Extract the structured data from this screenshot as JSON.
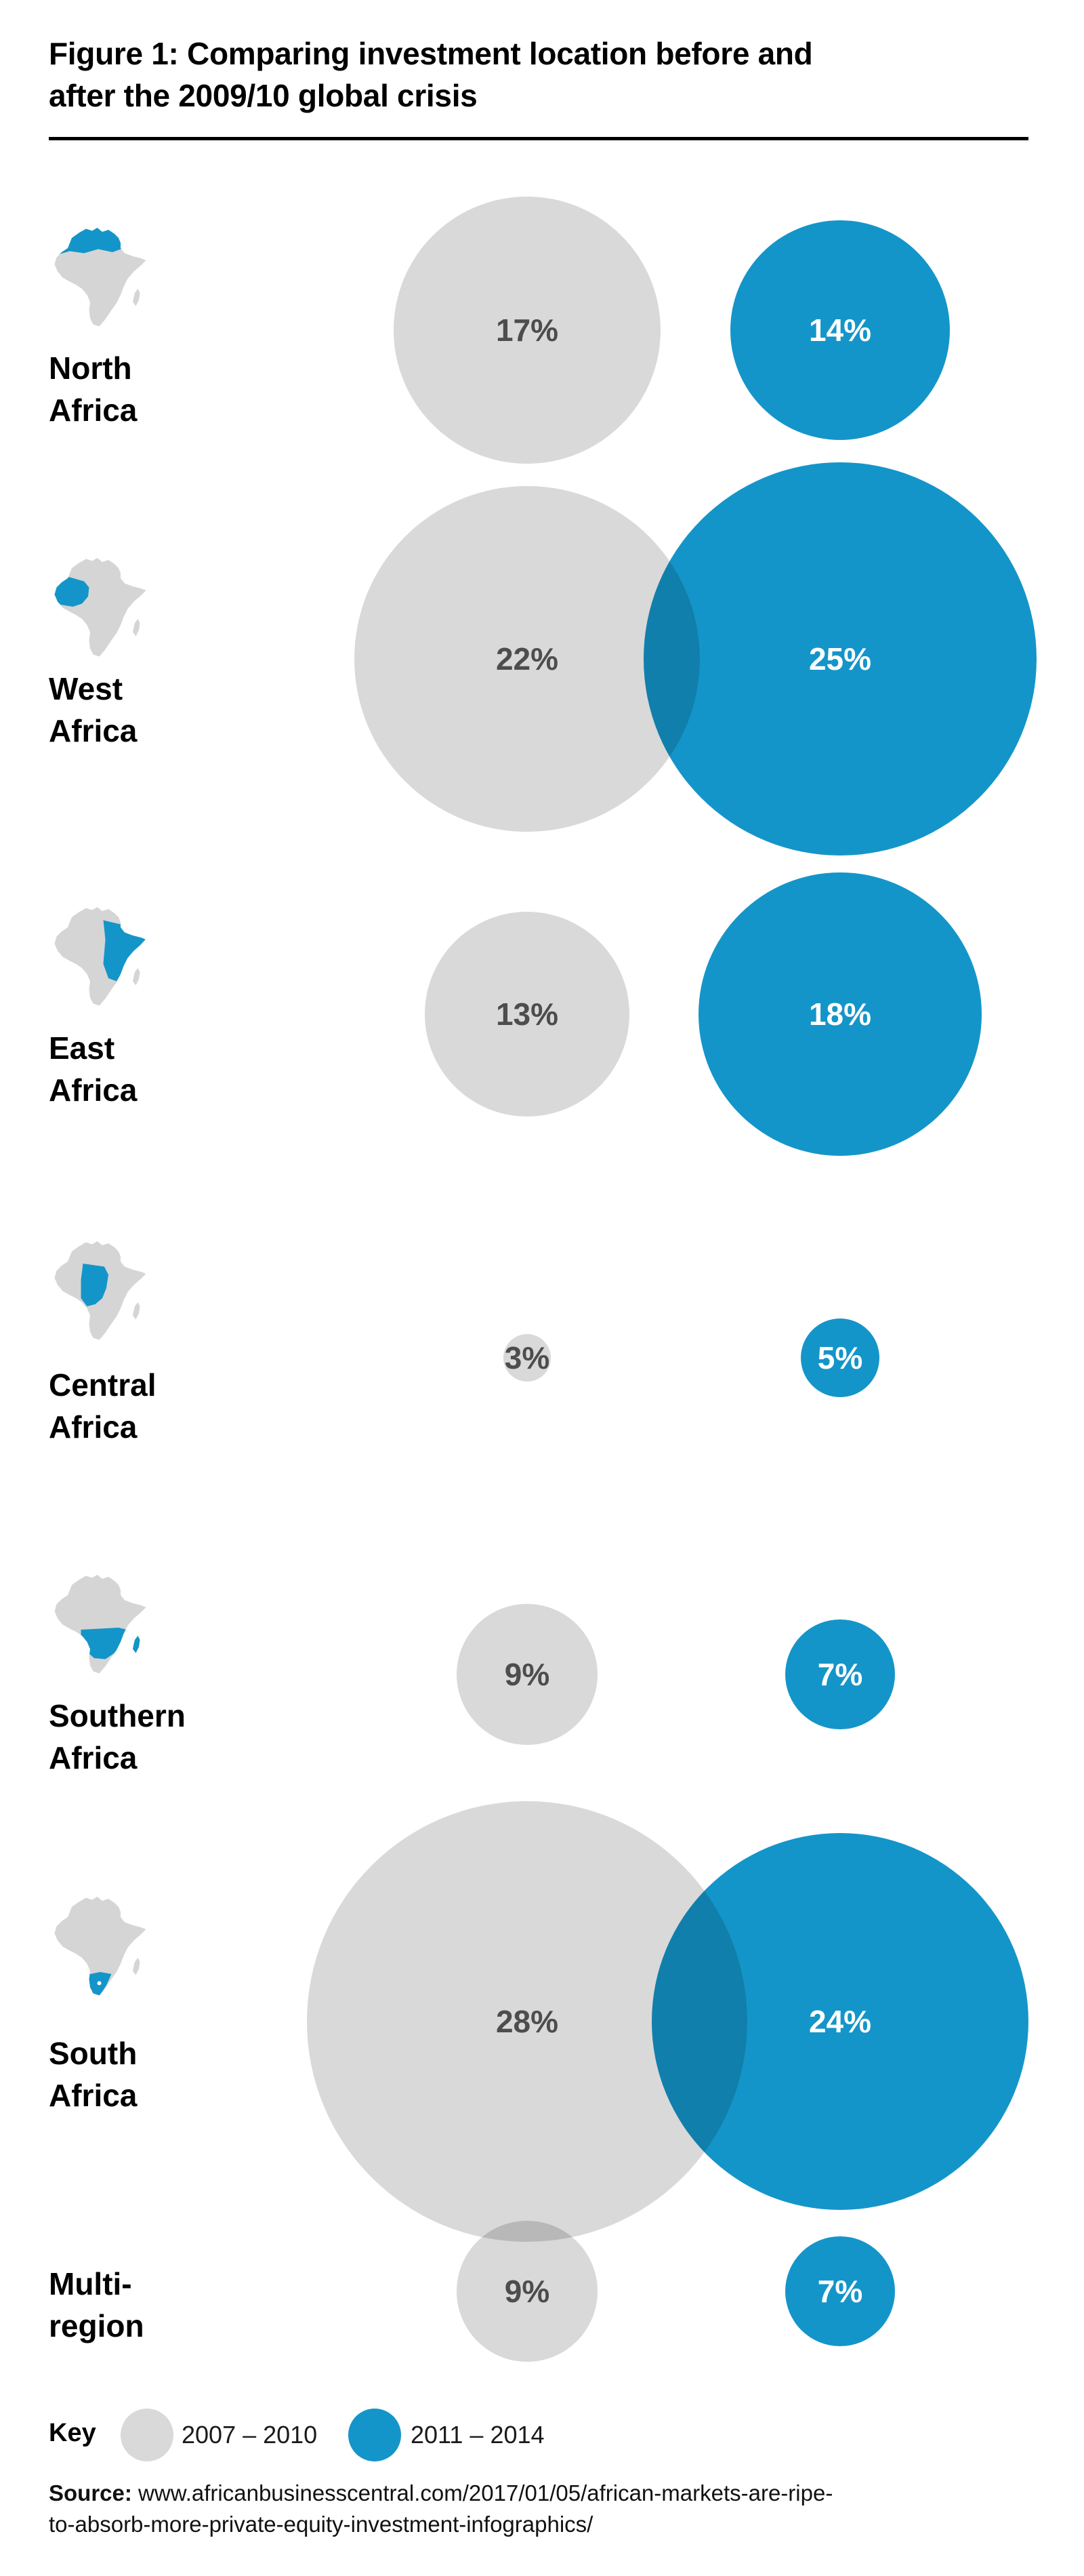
{
  "title": {
    "line1": "Figure 1: Comparing investment location before and",
    "line2": "after the 2009/10 global crisis"
  },
  "colors": {
    "before": "#d9d9d9",
    "after": "#1495c9",
    "map_base": "#d5d5d5",
    "pct_on_before": "#4d4d4d",
    "pct_on_after": "#ffffff"
  },
  "rows": [
    {
      "region": "North Africa",
      "region_key": "north",
      "label_line1": "North",
      "label_line2": "Africa",
      "before": 17,
      "after": 14,
      "before_label": "17%",
      "after_label": "14%"
    },
    {
      "region": "West Africa",
      "region_key": "west",
      "label_line1": "West",
      "label_line2": "Africa",
      "before": 22,
      "after": 25,
      "before_label": "22%",
      "after_label": "25%"
    },
    {
      "region": "East Africa",
      "region_key": "east",
      "label_line1": "East",
      "label_line2": "Africa",
      "before": 13,
      "after": 18,
      "before_label": "13%",
      "after_label": "18%"
    },
    {
      "region": "Central Africa",
      "region_key": "central",
      "label_line1": "Central",
      "label_line2": "Africa",
      "before": 3,
      "after": 5,
      "before_label": "3%",
      "after_label": "5%"
    },
    {
      "region": "Southern Africa",
      "region_key": "southern",
      "label_line1": "Southern",
      "label_line2": "Africa",
      "before": 9,
      "after": 7,
      "before_label": "9%",
      "after_label": "7%"
    },
    {
      "region": "South Africa",
      "region_key": "south",
      "label_line1": "South",
      "label_line2": "Africa",
      "before": 28,
      "after": 24,
      "before_label": "28%",
      "after_label": "24%"
    },
    {
      "region": "Multi-region",
      "region_key": null,
      "label_line1": "Multi-",
      "label_line2": "region",
      "before": 9,
      "after": 7,
      "before_label": "9%",
      "after_label": "7%"
    }
  ],
  "key": {
    "label": "Key",
    "before_label": "2007 – 2010",
    "after_label": "2011 – 2014"
  },
  "source": {
    "prefix": "Source:",
    "line1": "www.africanbusinesscentral.com/2017/01/05/african-markets-are-ripe-",
    "line2": "to-absorb-more-private-equity-investment-infographics/"
  },
  "chart_data": {
    "type": "bubble",
    "title": "Figure 1: Comparing investment location before and after the 2009/10 global crisis",
    "categories": [
      "North Africa",
      "West Africa",
      "East Africa",
      "Central Africa",
      "Southern Africa",
      "South Africa",
      "Multi-region"
    ],
    "series": [
      {
        "name": "2007 – 2010",
        "color": "#d9d9d9",
        "values": [
          17,
          22,
          13,
          3,
          9,
          28,
          9
        ]
      },
      {
        "name": "2011 – 2014",
        "color": "#1495c9",
        "values": [
          14,
          25,
          18,
          5,
          7,
          24,
          7
        ]
      }
    ],
    "unit": "%",
    "encoding": "circle radius proportional to value; overlapping circles darken (multiply)",
    "legend_position": "bottom",
    "source": "www.africanbusinesscentral.com/2017/01/05/african-markets-are-ripe-to-absorb-more-private-equity-investment-infographics/"
  }
}
